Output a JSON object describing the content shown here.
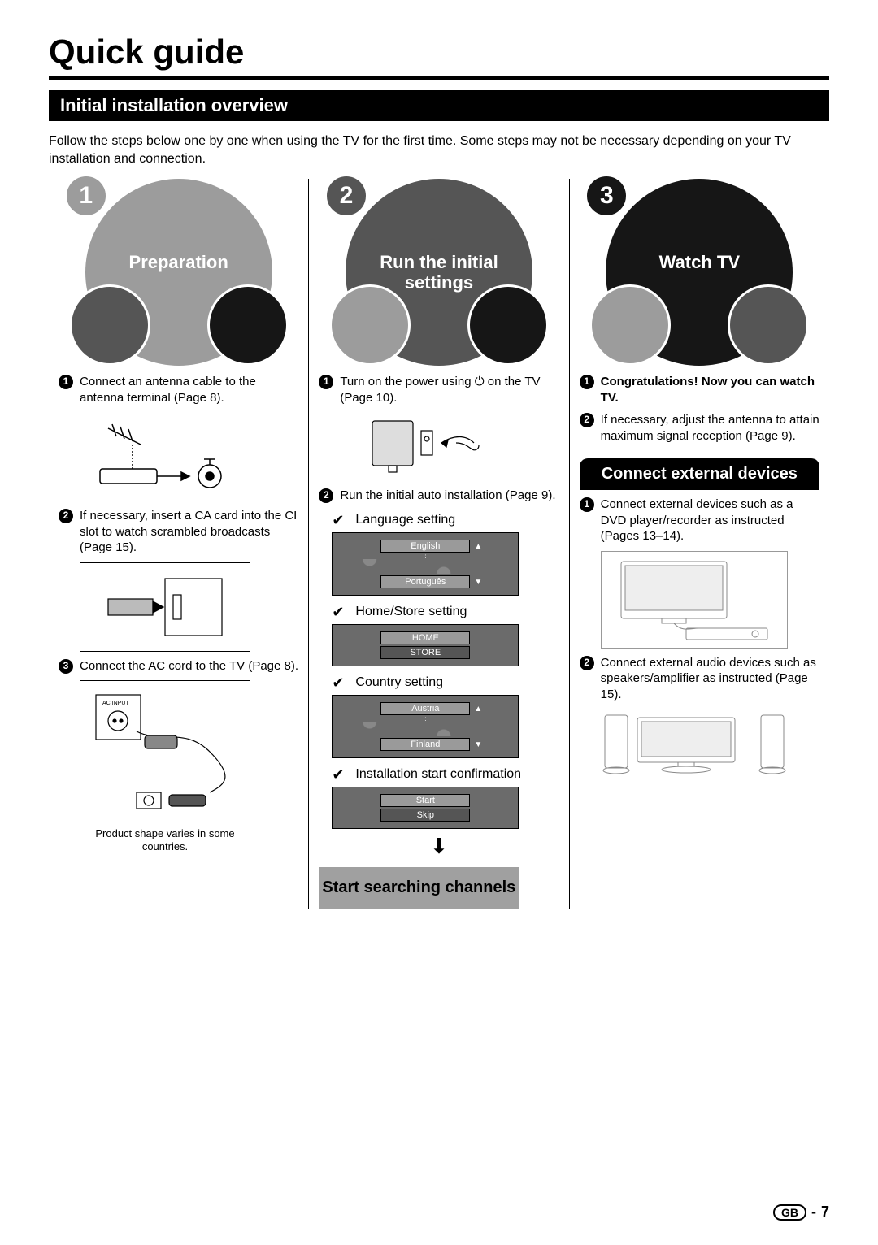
{
  "title": "Quick guide",
  "section_title": "Initial installation overview",
  "intro": "Follow the steps below one by one when using the TV for the first time. Some steps may not be necessary depending on your TV installation and connection.",
  "col1": {
    "venn_num": "1",
    "venn_label": "Preparation",
    "items": [
      "Connect an antenna cable to the antenna terminal (Page 8).",
      "If necessary, insert a CA card into the CI slot to watch scrambled broadcasts (Page 15).",
      "Connect the AC cord to the TV (Page 8)."
    ],
    "caption": "Product shape varies in some countries."
  },
  "col2": {
    "venn_num": "2",
    "venn_label": "Run the initial settings",
    "items": [
      "Turn on the power using ⏻ on the TV (Page 10).",
      "Run the initial auto installation (Page 9)."
    ],
    "settings": [
      {
        "label": "Language setting",
        "opts": [
          "English",
          "Português"
        ],
        "arrows": true
      },
      {
        "label": "Home/Store setting",
        "opts": [
          "HOME",
          "STORE"
        ],
        "arrows": false
      },
      {
        "label": "Country setting",
        "opts": [
          "Austria",
          "Finland"
        ],
        "arrows": true
      },
      {
        "label": "Installation start confirmation",
        "opts": [
          "Start",
          "Skip"
        ],
        "arrows": false
      }
    ],
    "start": "Start searching channels"
  },
  "col3": {
    "venn_num": "3",
    "venn_label": "Watch TV",
    "congrats": "Congratulations! Now you can watch TV.",
    "item2": "If necessary, adjust the antenna to attain maximum signal reception (Page 9).",
    "sub_title": "Connect external devices",
    "ext_items": [
      "Connect external devices such as a DVD player/recorder as instructed (Pages 13–14).",
      "Connect external audio devices such as speakers/amplifier as instructed (Page 15)."
    ]
  },
  "footer": {
    "gb": "GB",
    "page": "7"
  },
  "colors": {
    "grey": "#9c9c9c",
    "dark": "#555",
    "black": "#161616",
    "setting_bg": "#6b6b6b"
  }
}
